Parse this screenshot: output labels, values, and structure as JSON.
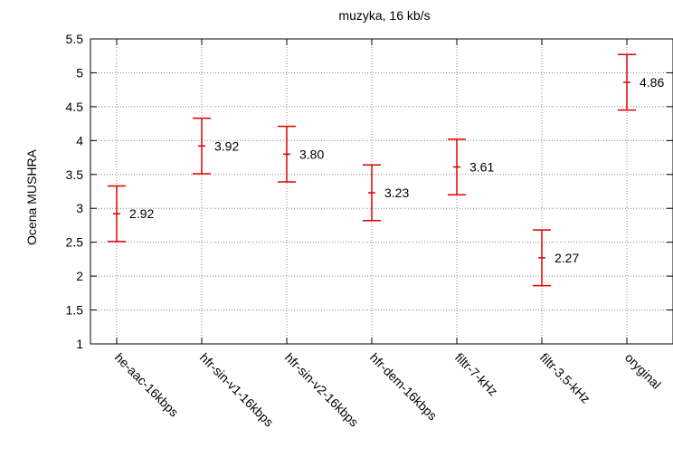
{
  "chart_data": {
    "type": "errorbar",
    "title": "muzyka, 16 kb/s",
    "xlabel": "",
    "ylabel": "Ocena MUSHRA",
    "ylim": [
      1,
      5.5
    ],
    "yticks": [
      "1",
      "1.5",
      "2",
      "2.5",
      "3",
      "3.5",
      "4",
      "4.5",
      "5",
      "5.5"
    ],
    "grid": true,
    "categories": [
      "he-aac-16kbps",
      "hfr-sin-v1-16kbps",
      "hfr-sin-v2-16kbps",
      "hfr-dem-16kbps",
      "filtr-7-kHz",
      "filtr-3.5-kHz",
      "oryginal"
    ],
    "values": [
      2.92,
      3.92,
      3.8,
      3.23,
      3.61,
      2.27,
      4.86
    ],
    "value_labels": [
      "2.92",
      "3.92",
      "3.80",
      "3.23",
      "3.61",
      "2.27",
      "4.86"
    ],
    "lower": [
      2.51,
      3.51,
      3.39,
      2.82,
      3.2,
      1.86,
      4.45
    ],
    "upper": [
      3.33,
      4.33,
      4.21,
      3.64,
      4.02,
      2.68,
      5.27
    ],
    "color": "#dd0000"
  }
}
